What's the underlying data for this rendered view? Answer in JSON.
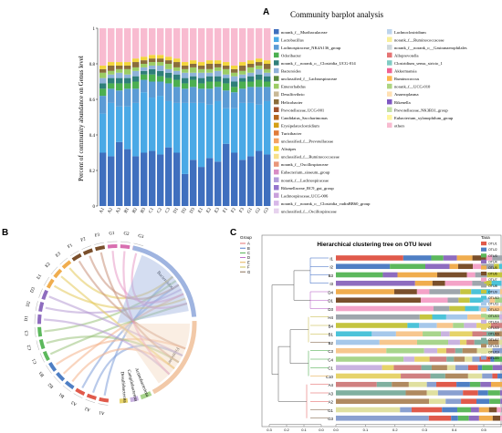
{
  "panels": {
    "a": "A",
    "b": "B",
    "c": "C"
  },
  "chart_data": [
    {
      "type": "bar",
      "stacked": true,
      "title": "Community barplot analysis",
      "ylabel": "Percent of community abundance on Genus level",
      "xlabel": "",
      "ylim": [
        0,
        1
      ],
      "yticks": [
        "0",
        "0.2",
        "0.4",
        "0.6",
        "0.8",
        "1"
      ],
      "categories": [
        "A1",
        "A2",
        "A3",
        "B1",
        "B2",
        "B3",
        "C1",
        "C2",
        "C3",
        "D1",
        "D2",
        "D3",
        "E1",
        "E2",
        "E3",
        "F1",
        "F2",
        "F3",
        "G1",
        "G2",
        "G3"
      ],
      "grid": false,
      "legend_placement": "right",
      "legend": [
        {
          "name": "norank_f__Muribaculaceae",
          "color": "#3f6fbe"
        },
        {
          "name": "Lactobacillus",
          "color": "#4aa9e6"
        },
        {
          "name": "Lachnospiraceae_NK4A136_group",
          "color": "#5b9bd5"
        },
        {
          "name": "Odoribacter",
          "color": "#4caf50"
        },
        {
          "name": "norank_f__norank_o__Clostridia_UCG-014",
          "color": "#2f7f7a"
        },
        {
          "name": "Bacteroides",
          "color": "#8fb2d9"
        },
        {
          "name": "unclassified_f__Lachnospiraceae",
          "color": "#5a8a3a"
        },
        {
          "name": "Enterorhabdus",
          "color": "#9ccc65"
        },
        {
          "name": "Desulfovibrio",
          "color": "#c8b896"
        },
        {
          "name": "Helicobacter",
          "color": "#8a6d3b"
        },
        {
          "name": "Prevotellaceae_UCG-001",
          "color": "#a0522d"
        },
        {
          "name": "Candidatus_Saccharimonas",
          "color": "#b5651d"
        },
        {
          "name": "Erysipelatoclostridium",
          "color": "#d4a017"
        },
        {
          "name": "Turicibacter",
          "color": "#e07b39"
        },
        {
          "name": "unclassified_f__Prevotellaceae",
          "color": "#f4a261"
        },
        {
          "name": "Alistipes",
          "color": "#f2d53c"
        },
        {
          "name": "unclassified_f__Ruminococcaceae",
          "color": "#f7e08a"
        },
        {
          "name": "norank_f__Oscillospiraceae",
          "color": "#e9967a"
        },
        {
          "name": "Eubacterium_siraeum_group",
          "color": "#d98cc4"
        },
        {
          "name": "norank_f__Lachnospiraceae",
          "color": "#b39ddb"
        },
        {
          "name": "Rikenellaceae_RC9_gut_group",
          "color": "#9575cd"
        },
        {
          "name": "Lachnospiraceae_UCG-006",
          "color": "#c9a0dc"
        },
        {
          "name": "norank_f__norank_o__Clostridia_vadinBB60_group",
          "color": "#d7b7e8"
        },
        {
          "name": "unclassified_f__Oscillospiraceae",
          "color": "#e6d2ee"
        },
        {
          "name": "Lachnoclostridium",
          "color": "#bcd4ec"
        },
        {
          "name": "norank_f__Ruminococcaceae",
          "color": "#f8ef9a"
        },
        {
          "name": "norank_f__norank_o__Gastranaerophilales",
          "color": "#cfd8dc"
        },
        {
          "name": "Alloprevotella",
          "color": "#e57373"
        },
        {
          "name": "Clostridium_sensu_stricto_1",
          "color": "#80cbc4"
        },
        {
          "name": "Akkermansia",
          "color": "#f06292"
        },
        {
          "name": "Ruminococcus",
          "color": "#ffb74d"
        },
        {
          "name": "norank_f__UCG-010",
          "color": "#aed581"
        },
        {
          "name": "Anaeroplasma",
          "color": "#ffe0b2"
        },
        {
          "name": "Rikenella",
          "color": "#7e57c2"
        },
        {
          "name": "Prevotellaceae_NK3B31_group",
          "color": "#c5e1a5"
        },
        {
          "name": "Eubacterium_xylanophilum_group",
          "color": "#fff59d"
        },
        {
          "name": "others",
          "color": "#f8bbd0"
        }
      ],
      "series": [
        {
          "name": "norank_f__Muribaculaceae",
          "values": [
            0.3,
            0.28,
            0.36,
            0.32,
            0.28,
            0.3,
            0.31,
            0.29,
            0.33,
            0.3,
            0.18,
            0.26,
            0.22,
            0.27,
            0.25,
            0.35,
            0.3,
            0.26,
            0.28,
            0.31,
            0.29
          ]
        },
        {
          "name": "Lactobacillus",
          "values": [
            0.22,
            0.3,
            0.2,
            0.24,
            0.3,
            0.34,
            0.3,
            0.33,
            0.26,
            0.28,
            0.4,
            0.32,
            0.36,
            0.3,
            0.34,
            0.2,
            0.25,
            0.32,
            0.3,
            0.26,
            0.3
          ]
        },
        {
          "name": "Lachnospiraceae_NK4A136_group",
          "values": [
            0.1,
            0.08,
            0.09,
            0.1,
            0.08,
            0.07,
            0.09,
            0.08,
            0.1,
            0.09,
            0.08,
            0.09,
            0.08,
            0.09,
            0.08,
            0.1,
            0.09,
            0.08,
            0.09,
            0.1,
            0.08
          ]
        },
        {
          "name": "Odoribacter",
          "values": [
            0.04,
            0.03,
            0.04,
            0.03,
            0.04,
            0.03,
            0.04,
            0.03,
            0.03,
            0.04,
            0.03,
            0.04,
            0.03,
            0.04,
            0.03,
            0.04,
            0.03,
            0.04,
            0.03,
            0.04,
            0.03
          ]
        },
        {
          "name": "norank_f__norank_o__Clostridia_UCG-014",
          "values": [
            0.03,
            0.03,
            0.03,
            0.03,
            0.03,
            0.02,
            0.03,
            0.03,
            0.03,
            0.03,
            0.03,
            0.02,
            0.03,
            0.03,
            0.03,
            0.03,
            0.03,
            0.02,
            0.03,
            0.03,
            0.03
          ]
        },
        {
          "name": "Bacteroides",
          "values": [
            0.03,
            0.02,
            0.03,
            0.02,
            0.03,
            0.02,
            0.02,
            0.03,
            0.02,
            0.02,
            0.03,
            0.02,
            0.03,
            0.02,
            0.03,
            0.02,
            0.03,
            0.02,
            0.02,
            0.03,
            0.02
          ]
        },
        {
          "name": "Enterorhabdus",
          "values": [
            0.03,
            0.02,
            0.02,
            0.03,
            0.02,
            0.02,
            0.02,
            0.02,
            0.03,
            0.02,
            0.02,
            0.03,
            0.02,
            0.02,
            0.02,
            0.03,
            0.02,
            0.02,
            0.03,
            0.02,
            0.02
          ]
        },
        {
          "name": "Helicobacter",
          "values": [
            0.02,
            0.03,
            0.02,
            0.02,
            0.03,
            0.02,
            0.02,
            0.02,
            0.02,
            0.03,
            0.02,
            0.02,
            0.02,
            0.03,
            0.02,
            0.02,
            0.02,
            0.03,
            0.02,
            0.02,
            0.03
          ]
        },
        {
          "name": "Alistipes",
          "values": [
            0.02,
            0.02,
            0.02,
            0.02,
            0.02,
            0.02,
            0.02,
            0.02,
            0.02,
            0.02,
            0.02,
            0.02,
            0.02,
            0.02,
            0.02,
            0.02,
            0.02,
            0.02,
            0.02,
            0.02,
            0.02
          ]
        },
        {
          "name": "others",
          "values": [
            0.21,
            0.19,
            0.19,
            0.19,
            0.17,
            0.16,
            0.15,
            0.15,
            0.16,
            0.17,
            0.19,
            0.18,
            0.19,
            0.18,
            0.18,
            0.19,
            0.21,
            0.19,
            0.18,
            0.17,
            0.18
          ]
        }
      ]
    },
    {
      "type": "chord",
      "sectors": [
        "Bacteroidota",
        "Firmicutes",
        "Actinobacteriota",
        "Campilobacterota",
        "Desulfobacterota"
      ],
      "sample_labels": [
        "A1",
        "A2",
        "A3",
        "B1",
        "B2",
        "B3",
        "C1",
        "C2",
        "C3",
        "D1",
        "D2",
        "D3",
        "E1",
        "E2",
        "E3",
        "F1",
        "F2",
        "F3",
        "G1",
        "G2",
        "G3"
      ]
    },
    {
      "type": "bar",
      "stacked": true,
      "orientation": "horizontal",
      "title": "Hierarchical clustering tree on OTU level",
      "group_legend_title": "Group",
      "groups": [
        {
          "name": "A",
          "color": "#e05050"
        },
        {
          "name": "B",
          "color": "#3060c0"
        },
        {
          "name": "C",
          "color": "#30a030"
        },
        {
          "name": "D",
          "color": "#b050c0"
        },
        {
          "name": "E",
          "color": "#e0a030"
        },
        {
          "name": "F",
          "color": "#c0b030"
        },
        {
          "name": "G",
          "color": "#6d4c2f"
        }
      ],
      "taxa_legend_title": "Taxa",
      "rows": [
        "I1",
        "I2",
        "B3",
        "I3",
        "D4",
        "D1",
        "D3",
        "H4",
        "B4",
        "B1",
        "B2",
        "C3",
        "C4",
        "C1",
        "C10",
        "A4",
        "A3",
        "A2",
        "G1",
        "G3"
      ],
      "xticks": [
        "0.0",
        "0.1",
        "0.2",
        "0.3",
        "0.4",
        "0.5",
        "0.6",
        "0.7"
      ],
      "tree_xticks": [
        "0.3",
        "0.2",
        "0.1",
        "0.0"
      ],
      "taxa": [
        {
          "name": "OTU1",
          "color": "#e05a4b"
        },
        {
          "name": "OTU2",
          "color": "#4f7fc4"
        },
        {
          "name": "OTU3",
          "color": "#5cb85c"
        },
        {
          "name": "OTU4",
          "color": "#8e6cbf"
        },
        {
          "name": "OTU5",
          "color": "#f0ad4e"
        },
        {
          "name": "OTU6",
          "color": "#7a4f2b"
        },
        {
          "name": "OTU7",
          "color": "#f4a3c8"
        },
        {
          "name": "OTU8",
          "color": "#9fa6ad"
        },
        {
          "name": "OTU9",
          "color": "#c5c540"
        },
        {
          "name": "OTU10",
          "color": "#4cc3d9"
        },
        {
          "name": "OTU11",
          "color": "#a6c8ea"
        },
        {
          "name": "OTU12",
          "color": "#f7c78e"
        },
        {
          "name": "OTU13",
          "color": "#a8d58c"
        },
        {
          "name": "OTU14",
          "color": "#c9b3e0"
        },
        {
          "name": "OTU15",
          "color": "#e6d36a"
        },
        {
          "name": "OTU16",
          "color": "#d08080"
        },
        {
          "name": "OTU17",
          "color": "#80b0a0"
        },
        {
          "name": "OTU18",
          "color": "#b08a60"
        },
        {
          "name": "OTU19",
          "color": "#e0e0a0"
        },
        {
          "name": "OTU20",
          "color": "#8aa0d0"
        }
      ]
    }
  ]
}
